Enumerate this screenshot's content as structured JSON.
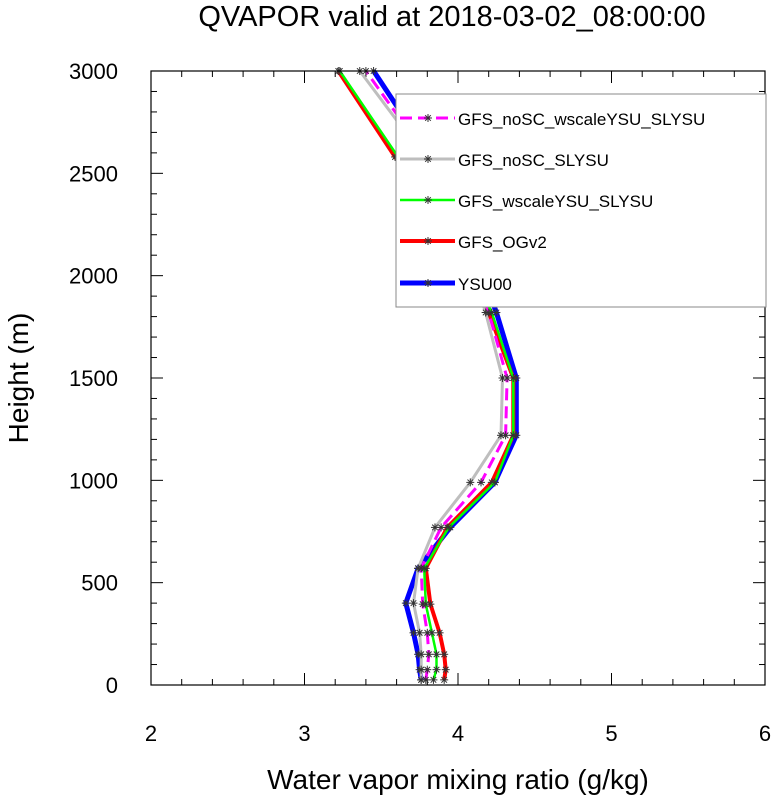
{
  "chart_data": {
    "type": "line",
    "title": "QVAPOR valid at 2018-03-02_08:00:00",
    "xlabel": "Water vapor mixing ratio (g/kg)",
    "ylabel": "Height (m)",
    "xlim": [
      2,
      6
    ],
    "ylim": [
      0,
      3000
    ],
    "xticks": [
      "2",
      "3",
      "4",
      "5",
      "6"
    ],
    "yticks": [
      "0",
      "500",
      "1000",
      "1500",
      "2000",
      "2500",
      "3000"
    ],
    "legend_position": "top-right",
    "grid": false,
    "series": [
      {
        "name": "GFS_noSC_wscaleYSU_SLYSU",
        "color": "#ff00ff",
        "dash": "dash",
        "points": [
          [
            3.79,
            25
          ],
          [
            3.8,
            75
          ],
          [
            3.81,
            150
          ],
          [
            3.8,
            255
          ],
          [
            3.77,
            395
          ],
          [
            3.76,
            570
          ],
          [
            3.89,
            770
          ],
          [
            4.15,
            990
          ],
          [
            4.31,
            1220
          ],
          [
            4.32,
            1500
          ],
          [
            4.2,
            1820
          ],
          [
            4.05,
            2200
          ],
          [
            3.8,
            2580
          ],
          [
            3.4,
            3000
          ]
        ]
      },
      {
        "name": "GFS_noSC_SLYSU",
        "color": "#bebebe",
        "dash": "solid",
        "points": [
          [
            3.76,
            25
          ],
          [
            3.76,
            75
          ],
          [
            3.76,
            150
          ],
          [
            3.75,
            255
          ],
          [
            3.71,
            400
          ],
          [
            3.74,
            570
          ],
          [
            3.85,
            770
          ],
          [
            4.08,
            990
          ],
          [
            4.28,
            1220
          ],
          [
            4.29,
            1500
          ],
          [
            4.18,
            1820
          ],
          [
            4.02,
            2200
          ],
          [
            3.78,
            2580
          ],
          [
            3.36,
            3000
          ]
        ]
      },
      {
        "name": "GFS_wscaleYSU_SLYSU",
        "color": "#00ff00",
        "dash": "solid",
        "points": [
          [
            3.84,
            25
          ],
          [
            3.86,
            75
          ],
          [
            3.86,
            150
          ],
          [
            3.83,
            255
          ],
          [
            3.79,
            395
          ],
          [
            3.78,
            570
          ],
          [
            3.94,
            770
          ],
          [
            4.24,
            990
          ],
          [
            4.36,
            1220
          ],
          [
            4.36,
            1500
          ],
          [
            4.22,
            1820
          ],
          [
            3.97,
            2200
          ],
          [
            3.61,
            2580
          ],
          [
            3.23,
            3000
          ]
        ]
      },
      {
        "name": "GFS_OGv2",
        "color": "#ff0000",
        "dash": "solid",
        "points": [
          [
            3.91,
            25
          ],
          [
            3.92,
            75
          ],
          [
            3.91,
            150
          ],
          [
            3.88,
            255
          ],
          [
            3.82,
            395
          ],
          [
            3.79,
            570
          ],
          [
            3.93,
            770
          ],
          [
            4.22,
            990
          ],
          [
            4.36,
            1220
          ],
          [
            4.36,
            1500
          ],
          [
            4.2,
            1820
          ],
          [
            3.95,
            2200
          ],
          [
            3.59,
            2580
          ],
          [
            3.22,
            3000
          ]
        ]
      },
      {
        "name": "YSU00",
        "color": "#0000ff",
        "dash": "solid",
        "points": [
          [
            3.76,
            25
          ],
          [
            3.75,
            75
          ],
          [
            3.74,
            150
          ],
          [
            3.71,
            255
          ],
          [
            3.66,
            400
          ],
          [
            3.74,
            570
          ],
          [
            3.95,
            770
          ],
          [
            4.24,
            990
          ],
          [
            4.38,
            1220
          ],
          [
            4.38,
            1500
          ],
          [
            4.25,
            1820
          ],
          [
            4.07,
            2200
          ],
          [
            3.82,
            2580
          ],
          [
            3.45,
            3000
          ]
        ]
      }
    ]
  }
}
